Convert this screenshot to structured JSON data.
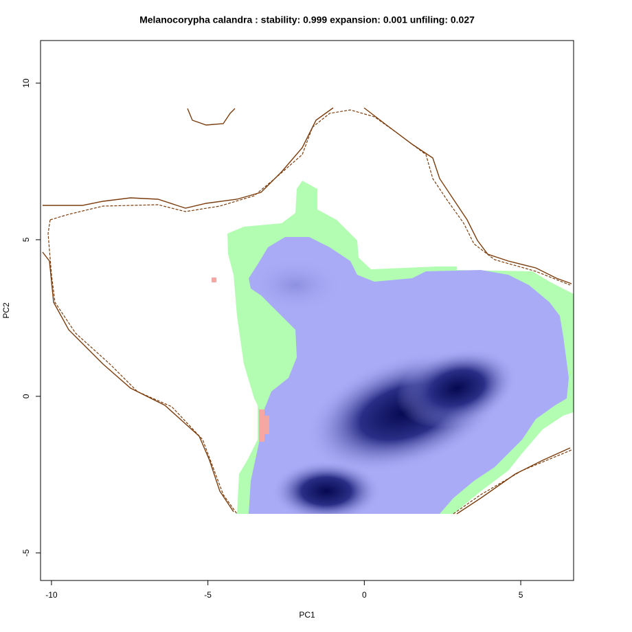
{
  "chart_data": {
    "type": "niche",
    "title": "Melanocorypha calandra : stability: 0.999 expansion: 0.001 unfiling: 0.027",
    "x_label": "PC1",
    "y_label": "PC2",
    "xlim": [
      -10.35,
      6.69
    ],
    "ylim": [
      -5.88,
      11.36
    ],
    "xticks": [
      -10,
      -5,
      0,
      5
    ],
    "yticks": [
      -5,
      0,
      5,
      10
    ]
  }
}
